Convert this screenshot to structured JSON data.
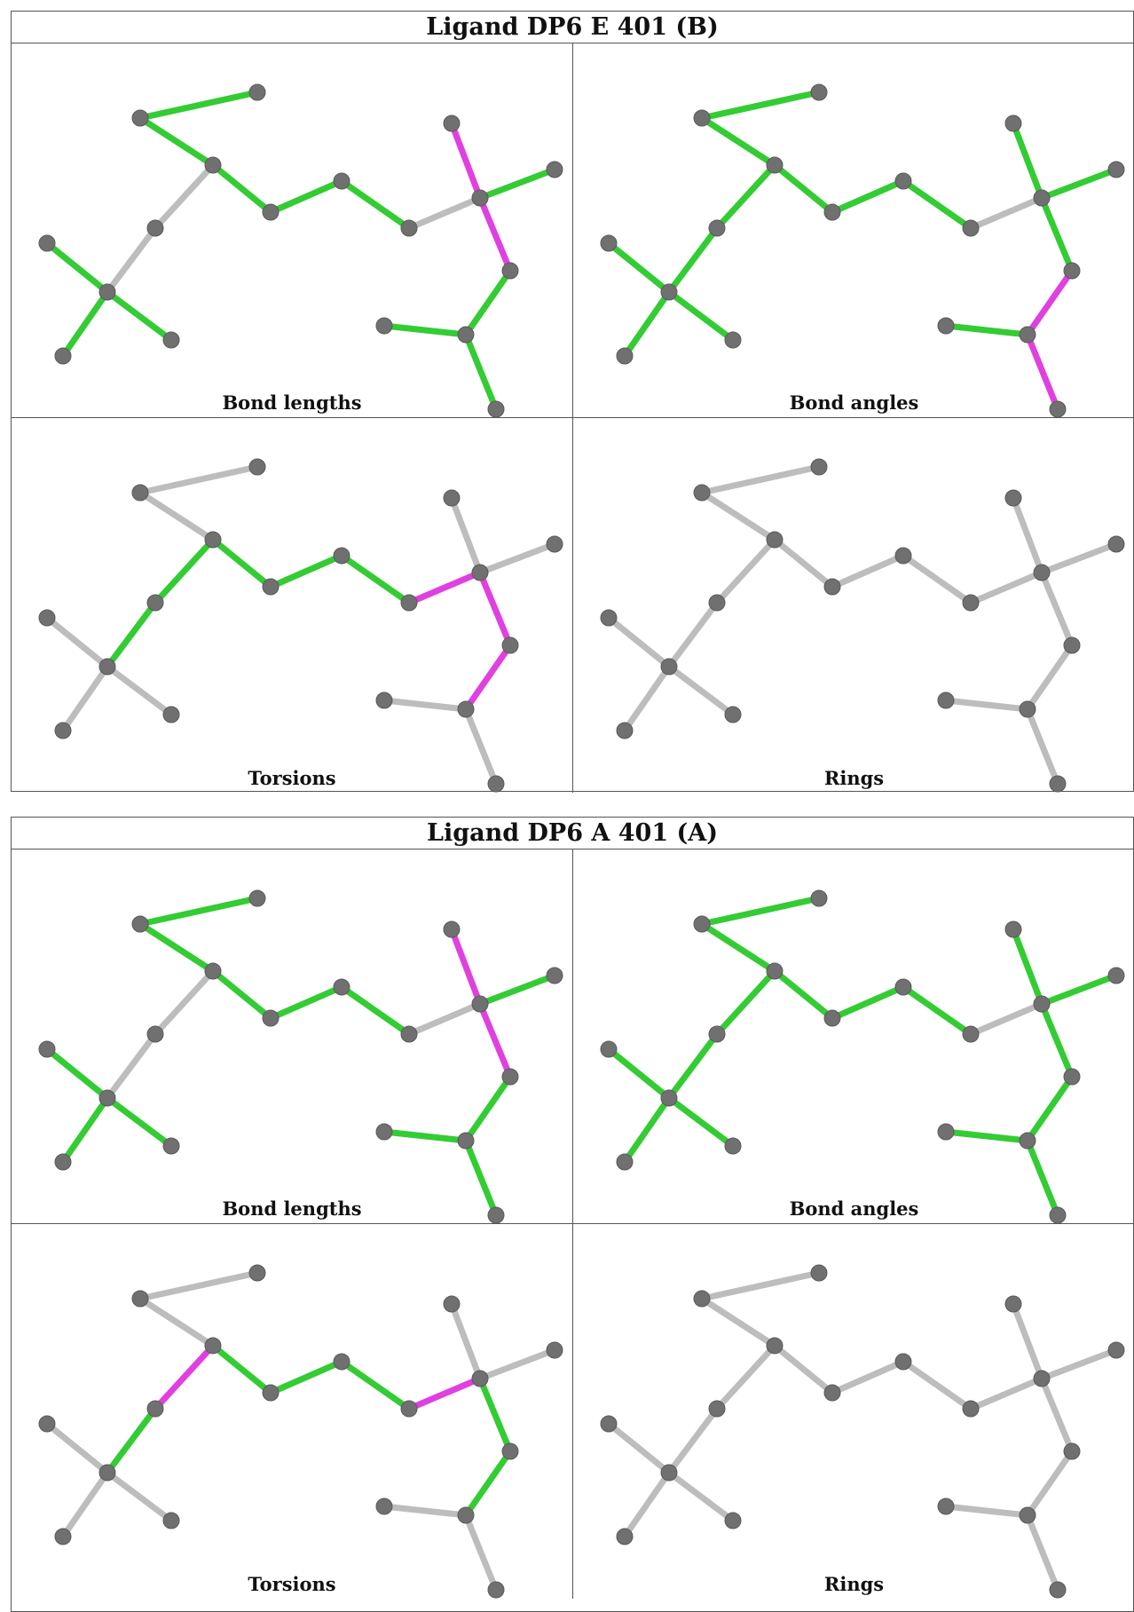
{
  "ligands": [
    {
      "title": "Ligand DP6 E 401 (B)",
      "panels": [
        {
          "caption": "Bond lengths",
          "magenta": [
            [
              13,
              12
            ],
            [
              12,
              14
            ]
          ],
          "green": [
            [
              0,
              1
            ],
            [
              0,
              2
            ],
            [
              4,
              5
            ],
            [
              4,
              6
            ],
            [
              4,
              7
            ],
            [
              2,
              8
            ],
            [
              8,
              9
            ],
            [
              9,
              10
            ],
            [
              12,
              15
            ],
            [
              14,
              16
            ],
            [
              16,
              17
            ],
            [
              16,
              18
            ]
          ],
          "gray": [
            [
              2,
              3
            ],
            [
              3,
              4
            ],
            [
              10,
              11
            ],
            [
              11,
              12
            ]
          ]
        },
        {
          "caption": "Bond angles",
          "magenta": [
            [
              14,
              16
            ],
            [
              16,
              18
            ]
          ],
          "green": [
            [
              0,
              1
            ],
            [
              0,
              2
            ],
            [
              4,
              5
            ],
            [
              4,
              6
            ],
            [
              4,
              7
            ],
            [
              2,
              8
            ],
            [
              8,
              9
            ],
            [
              9,
              10
            ],
            [
              12,
              15
            ],
            [
              14,
              12
            ],
            [
              16,
              17
            ],
            [
              13,
              12
            ],
            [
              2,
              3
            ],
            [
              3,
              4
            ]
          ],
          "gray": [
            [
              10,
              11
            ],
            [
              11,
              12
            ]
          ]
        },
        {
          "caption": "Torsions",
          "magenta": [
            [
              11,
              12
            ],
            [
              12,
              14
            ],
            [
              14,
              16
            ]
          ],
          "green": [
            [
              2,
              3
            ],
            [
              3,
              4
            ],
            [
              2,
              8
            ],
            [
              8,
              9
            ],
            [
              9,
              10
            ],
            [
              10,
              11
            ]
          ],
          "gray": [
            [
              0,
              1
            ],
            [
              0,
              2
            ],
            [
              4,
              5
            ],
            [
              4,
              6
            ],
            [
              4,
              7
            ],
            [
              13,
              12
            ],
            [
              12,
              15
            ],
            [
              16,
              17
            ],
            [
              16,
              18
            ]
          ]
        },
        {
          "caption": "Rings",
          "magenta": [],
          "green": [],
          "gray": [
            [
              0,
              1
            ],
            [
              0,
              2
            ],
            [
              2,
              3
            ],
            [
              3,
              4
            ],
            [
              4,
              5
            ],
            [
              4,
              6
            ],
            [
              4,
              7
            ],
            [
              2,
              8
            ],
            [
              8,
              9
            ],
            [
              9,
              10
            ],
            [
              10,
              11
            ],
            [
              11,
              12
            ],
            [
              13,
              12
            ],
            [
              12,
              15
            ],
            [
              12,
              14
            ],
            [
              14,
              16
            ],
            [
              16,
              17
            ],
            [
              16,
              18
            ]
          ]
        }
      ]
    },
    {
      "title": "Ligand DP6 A 401 (A)",
      "panels": [
        {
          "caption": "Bond lengths",
          "magenta": [
            [
              13,
              12
            ],
            [
              12,
              14
            ]
          ],
          "green": [
            [
              0,
              1
            ],
            [
              0,
              2
            ],
            [
              4,
              5
            ],
            [
              4,
              6
            ],
            [
              4,
              7
            ],
            [
              2,
              8
            ],
            [
              8,
              9
            ],
            [
              9,
              10
            ],
            [
              12,
              15
            ],
            [
              14,
              16
            ],
            [
              16,
              17
            ],
            [
              16,
              18
            ]
          ],
          "gray": [
            [
              2,
              3
            ],
            [
              3,
              4
            ],
            [
              10,
              11
            ],
            [
              11,
              12
            ]
          ]
        },
        {
          "caption": "Bond angles",
          "magenta": [],
          "green": [
            [
              0,
              1
            ],
            [
              0,
              2
            ],
            [
              4,
              5
            ],
            [
              4,
              6
            ],
            [
              4,
              7
            ],
            [
              2,
              8
            ],
            [
              8,
              9
            ],
            [
              9,
              10
            ],
            [
              12,
              15
            ],
            [
              14,
              12
            ],
            [
              16,
              17
            ],
            [
              13,
              12
            ],
            [
              2,
              3
            ],
            [
              3,
              4
            ],
            [
              14,
              16
            ],
            [
              16,
              18
            ]
          ],
          "gray": [
            [
              10,
              11
            ],
            [
              11,
              12
            ]
          ]
        },
        {
          "caption": "Torsions",
          "magenta": [
            [
              2,
              3
            ],
            [
              11,
              12
            ]
          ],
          "green": [
            [
              3,
              4
            ],
            [
              2,
              8
            ],
            [
              8,
              9
            ],
            [
              9,
              10
            ],
            [
              10,
              11
            ],
            [
              12,
              14
            ],
            [
              14,
              16
            ]
          ],
          "gray": [
            [
              0,
              1
            ],
            [
              0,
              2
            ],
            [
              4,
              5
            ],
            [
              4,
              6
            ],
            [
              4,
              7
            ],
            [
              13,
              12
            ],
            [
              12,
              15
            ],
            [
              16,
              17
            ],
            [
              16,
              18
            ]
          ]
        },
        {
          "caption": "Rings",
          "magenta": [],
          "green": [],
          "gray": [
            [
              0,
              1
            ],
            [
              0,
              2
            ],
            [
              2,
              3
            ],
            [
              3,
              4
            ],
            [
              4,
              5
            ],
            [
              4,
              6
            ],
            [
              4,
              7
            ],
            [
              2,
              8
            ],
            [
              8,
              9
            ],
            [
              9,
              10
            ],
            [
              10,
              11
            ],
            [
              11,
              12
            ],
            [
              13,
              12
            ],
            [
              12,
              15
            ],
            [
              12,
              14
            ],
            [
              14,
              16
            ],
            [
              16,
              17
            ],
            [
              16,
              18
            ]
          ]
        }
      ]
    }
  ],
  "colors": {
    "green": "#33cc33",
    "magenta": "#e040e0",
    "gray": "#bdbdbd",
    "atom": "#707070"
  }
}
